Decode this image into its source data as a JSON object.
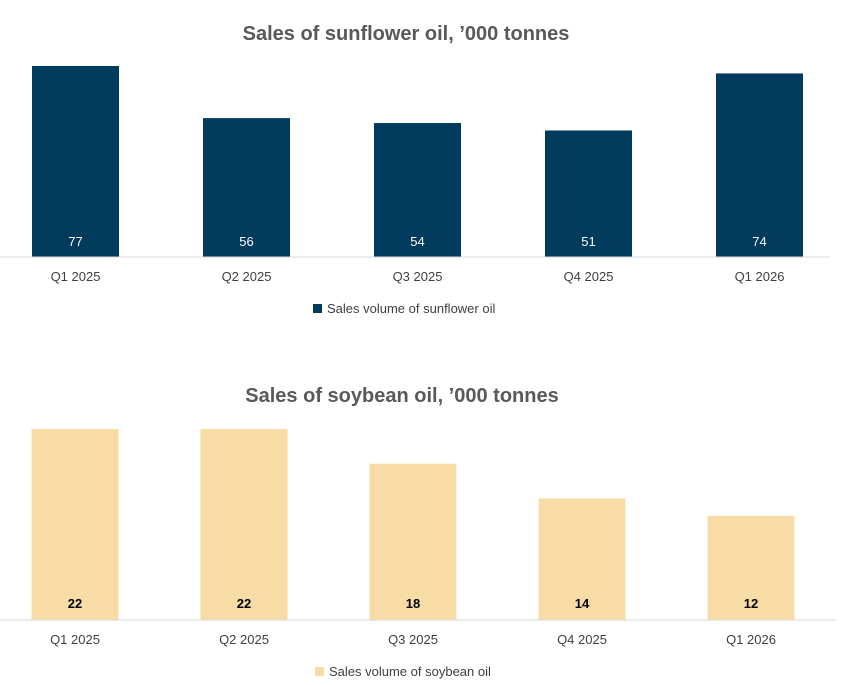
{
  "chart_data": [
    {
      "type": "bar",
      "title": "Sales of sunflower oil, ’000 tonnes",
      "categories": [
        "Q1 2025",
        "Q2 2025",
        "Q3 2025",
        "Q4 2025",
        "Q1 2026"
      ],
      "series": [
        {
          "name": "Sales volume of sunflower oil",
          "values": [
            77,
            56,
            54,
            51,
            74
          ],
          "color": "#003A5D"
        }
      ],
      "ylim": [
        0,
        77
      ],
      "grid": false,
      "legend": "bottom",
      "data_label_color": "#ffffff",
      "data_label_bold": false
    },
    {
      "type": "bar",
      "title": "Sales of soybean oil, ’000 tonnes",
      "categories": [
        "Q1 2025",
        "Q2 2025",
        "Q3 2025",
        "Q4 2025",
        "Q1 2026"
      ],
      "series": [
        {
          "name": "Sales volume of soybean oil",
          "values": [
            22,
            22,
            18,
            14,
            12
          ],
          "color": "#F7DCA5"
        }
      ],
      "ylim": [
        0,
        22
      ],
      "grid": false,
      "legend": "bottom",
      "data_label_color": "#000000",
      "data_label_bold": true
    }
  ]
}
